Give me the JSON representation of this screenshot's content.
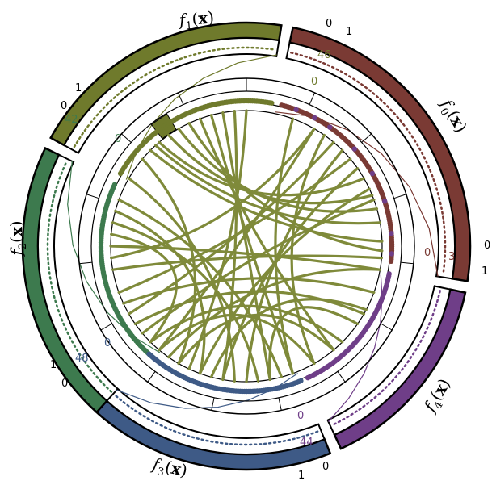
{
  "diagram": {
    "colors": {
      "f0": "#7a3a34",
      "f1": "#6f7a2c",
      "f2": "#3d7a4e",
      "f3": "#3e5a86",
      "f4": "#6f3e88",
      "chords": "#7f8a3a",
      "ring": "#000000"
    },
    "sectors": [
      {
        "key": "f0",
        "label": "f0(x)",
        "tick_min": "0",
        "tick_max": "1",
        "count_label": "37",
        "zero_label": "0"
      },
      {
        "key": "f1",
        "label": "f1(x)",
        "tick_min": "1",
        "tick_max": "0",
        "count_label": "46",
        "zero_label": "0"
      },
      {
        "key": "f2",
        "label": "f2(x)",
        "tick_min": "1",
        "tick_max": "0",
        "count_label": "42",
        "zero_label": "0"
      },
      {
        "key": "f3",
        "label": "f3(x)",
        "tick_min": "0",
        "tick_max": "1",
        "count_label": "48",
        "zero_label": "0"
      },
      {
        "key": "f4",
        "label": "f4(x)",
        "tick_min": "0",
        "tick_max": "1",
        "count_label": "44",
        "zero_label": "0"
      }
    ]
  }
}
